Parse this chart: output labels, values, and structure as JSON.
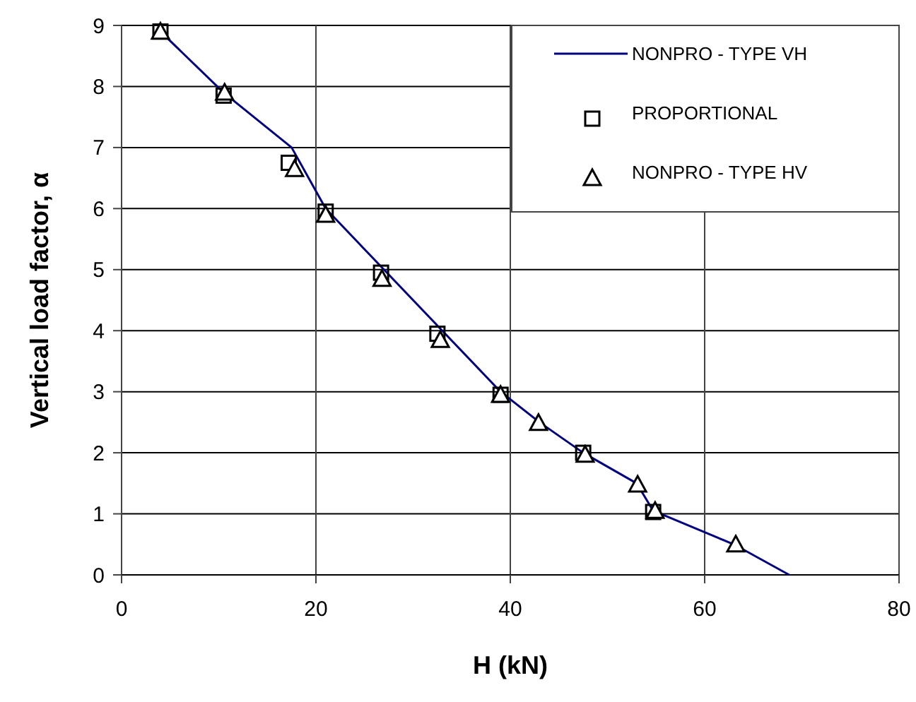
{
  "chart_data": {
    "type": "line",
    "xlabel": "H (kN)",
    "ylabel": "Vertical load factor, α",
    "xlim": [
      0,
      80
    ],
    "ylim": [
      0,
      9
    ],
    "xticks": [
      0,
      20,
      40,
      60,
      80
    ],
    "yticks": [
      0,
      1,
      2,
      3,
      4,
      5,
      6,
      7,
      8,
      9
    ],
    "grid": true,
    "legend": "top right",
    "series": [
      {
        "name": "NONPRO - TYPE VH",
        "color": "#000080",
        "marker": "none",
        "x": [
          4,
          10.5,
          17.5,
          21,
          27,
          33,
          39,
          43,
          47.5,
          53,
          54.7,
          63,
          68.7
        ],
        "values": [
          8.9,
          7.9,
          7,
          6,
          5,
          4,
          3,
          2.5,
          2,
          1.5,
          1.05,
          0.5,
          0
        ]
      },
      {
        "name": "PROPORTIONAL",
        "type": "scatter",
        "color": "#000000",
        "marker": "square",
        "x": [
          4,
          10.5,
          17.2,
          21,
          26.7,
          32.5,
          39,
          47.5,
          54.7
        ],
        "values": [
          8.9,
          7.85,
          6.75,
          5.95,
          4.95,
          3.95,
          2.95,
          2,
          1.03
        ]
      },
      {
        "name": "NONPRO - TYPE HV",
        "type": "scatter",
        "color": "#000000",
        "marker": "triangle",
        "x": [
          4,
          10.6,
          17.8,
          21,
          26.8,
          32.8,
          39,
          42.9,
          47.7,
          53.1,
          54.9,
          63.2
        ],
        "values": [
          8.9,
          7.9,
          6.65,
          5.9,
          4.85,
          3.85,
          2.95,
          2.49,
          1.97,
          1.48,
          1.05,
          0.5
        ]
      }
    ]
  }
}
